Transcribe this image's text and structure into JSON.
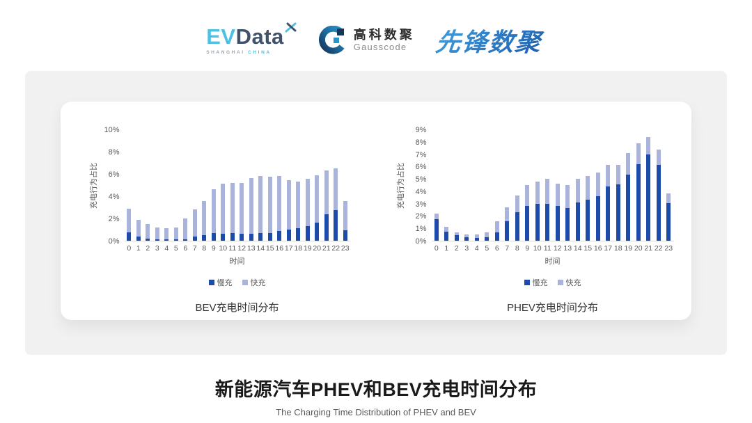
{
  "header": {
    "evdata": {
      "ev": "EV",
      "data": "Data",
      "sub_left": "SHANGHAI",
      "sub_right": "CHINA",
      "brand_cyan": "#4ec1e2",
      "brand_slate": "#42526b"
    },
    "gausscode": {
      "cn": "高科数聚",
      "en": "Gausscode",
      "brand_navy": "#16365c",
      "brand_blue": "#2a93c9"
    },
    "xianfeng": {
      "text": "先锋数聚",
      "brand_blue": "#2b7ac4"
    }
  },
  "icons": {
    "evdata-spark-icon": "x-cross-spark",
    "gausscode-mark-icon": "g-ring-with-squares"
  },
  "colors": {
    "panel_gray": "#f1f1f2",
    "slow_charge_blue": "#1c4baa",
    "fast_charge_periwinkle": "#a9b3dc",
    "axis_text_gray": "#595959"
  },
  "chart_data": [
    {
      "type": "bar",
      "stacked": true,
      "title": "BEV充电时间分布",
      "xlabel": "时间",
      "ylabel": "充电行为占比",
      "x": [
        0,
        1,
        2,
        3,
        4,
        5,
        6,
        7,
        8,
        9,
        10,
        11,
        12,
        13,
        14,
        15,
        16,
        17,
        18,
        19,
        20,
        21,
        22,
        23
      ],
      "series": [
        {
          "name": "慢充",
          "color": "#1c4baa",
          "values": [
            0.75,
            0.35,
            0.2,
            0.1,
            0.1,
            0.1,
            0.15,
            0.35,
            0.5,
            0.7,
            0.65,
            0.7,
            0.6,
            0.65,
            0.7,
            0.7,
            0.85,
            1.0,
            1.1,
            1.3,
            1.6,
            2.4,
            2.75,
            0.95
          ]
        },
        {
          "name": "快充",
          "color": "#a9b3dc",
          "values": [
            2.15,
            1.55,
            1.3,
            1.1,
            1.0,
            1.1,
            1.85,
            2.45,
            3.05,
            3.9,
            4.5,
            4.5,
            4.6,
            4.95,
            5.1,
            5.05,
            4.95,
            4.45,
            4.2,
            4.25,
            4.3,
            3.9,
            3.75,
            2.6
          ]
        }
      ],
      "totals": [
        2.9,
        1.9,
        1.5,
        1.2,
        1.1,
        1.2,
        2.0,
        2.8,
        3.55,
        4.6,
        5.15,
        5.2,
        5.2,
        5.6,
        5.8,
        5.75,
        5.8,
        5.45,
        5.3,
        5.55,
        5.9,
        6.3,
        6.5,
        3.55
      ],
      "ylim": [
        0,
        10
      ],
      "yticks": [
        0,
        2,
        4,
        6,
        8,
        10
      ],
      "ytick_suffix": "%",
      "grid": false,
      "legend_position": "bottom"
    },
    {
      "type": "bar",
      "stacked": true,
      "title": "PHEV充电时间分布",
      "xlabel": "时间",
      "ylabel": "充电行为占比",
      "x": [
        0,
        1,
        2,
        3,
        4,
        5,
        6,
        7,
        8,
        9,
        10,
        11,
        12,
        13,
        14,
        15,
        16,
        17,
        18,
        19,
        20,
        21,
        22,
        23
      ],
      "series": [
        {
          "name": "慢充",
          "color": "#1c4baa",
          "values": [
            1.75,
            0.75,
            0.45,
            0.3,
            0.25,
            0.3,
            0.7,
            1.6,
            2.3,
            2.8,
            3.0,
            3.0,
            2.8,
            2.65,
            3.1,
            3.3,
            3.6,
            4.4,
            4.55,
            5.35,
            6.2,
            7.0,
            6.15,
            3.05
          ]
        },
        {
          "name": "快充",
          "color": "#a9b3dc",
          "values": [
            0.45,
            0.4,
            0.25,
            0.2,
            0.25,
            0.35,
            0.9,
            1.1,
            1.35,
            1.7,
            1.8,
            2.0,
            1.8,
            1.85,
            1.9,
            1.95,
            1.9,
            1.75,
            1.6,
            1.75,
            1.7,
            1.4,
            1.2,
            0.8
          ]
        }
      ],
      "totals": [
        2.2,
        1.15,
        0.7,
        0.5,
        0.5,
        0.65,
        1.6,
        2.7,
        3.65,
        4.5,
        4.8,
        5.0,
        4.6,
        4.5,
        5.0,
        5.25,
        5.5,
        6.15,
        6.15,
        7.1,
        7.9,
        8.4,
        7.35,
        3.85
      ],
      "ylim": [
        0,
        9
      ],
      "yticks": [
        0,
        1,
        2,
        3,
        4,
        5,
        6,
        7,
        8,
        9
      ],
      "ytick_suffix": "%",
      "grid": false,
      "legend_position": "bottom"
    }
  ],
  "footer": {
    "title": "新能源汽车PHEV和BEV充电时间分布",
    "subtitle": "The Charging Time Distribution of PHEV and BEV"
  }
}
